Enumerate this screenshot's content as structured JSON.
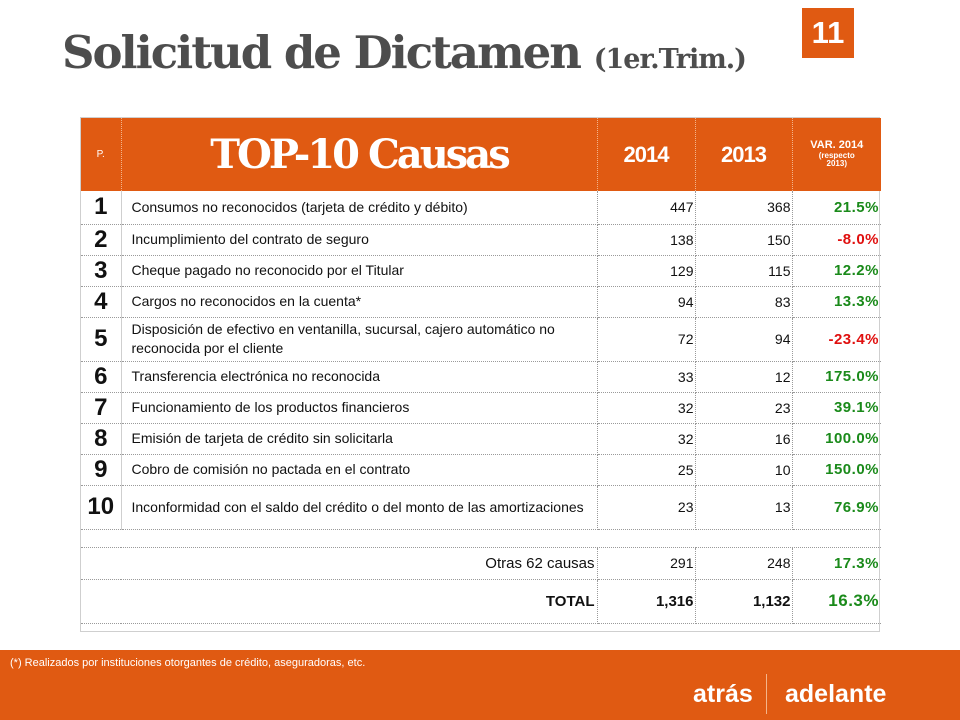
{
  "header": {
    "title": "Solicitud de Dictamen",
    "subtitle": "(1er.Trim.)",
    "page_number": "11"
  },
  "table": {
    "headers": {
      "p": "P.",
      "causes": "TOP-10 Causas",
      "y2014": "2014",
      "y2013": "2013",
      "var_line1": "VAR. 2014",
      "var_line2": "(respecto",
      "var_line3": "2013)"
    },
    "rows": [
      {
        "rank": "1",
        "cause": "Consumos no reconocidos (tarjeta de crédito y débito)",
        "v2014": "447",
        "v2013": "368",
        "var": "21.5%"
      },
      {
        "rank": "2",
        "cause": "Incumplimiento del contrato de seguro",
        "v2014": "138",
        "v2013": "150",
        "var": "-8.0%"
      },
      {
        "rank": "3",
        "cause": "Cheque pagado no reconocido por el Titular",
        "v2014": "129",
        "v2013": "115",
        "var": "12.2%"
      },
      {
        "rank": "4",
        "cause": "Cargos no reconocidos en la cuenta*",
        "v2014": "94",
        "v2013": "83",
        "var": "13.3%"
      },
      {
        "rank": "5",
        "cause": "Disposición de efectivo en ventanilla, sucursal, cajero automático no reconocida por el cliente",
        "v2014": "72",
        "v2013": "94",
        "var": "-23.4%"
      },
      {
        "rank": "6",
        "cause": "Transferencia electrónica no reconocida",
        "v2014": "33",
        "v2013": "12",
        "var": "175.0%"
      },
      {
        "rank": "7",
        "cause": "Funcionamiento de los productos financieros",
        "v2014": "32",
        "v2013": "23",
        "var": "39.1%"
      },
      {
        "rank": "8",
        "cause": "Emisión de tarjeta de crédito sin solicitarla",
        "v2014": "32",
        "v2013": "16",
        "var": "100.0%"
      },
      {
        "rank": "9",
        "cause": "Cobro de comisión no pactada en el contrato",
        "v2014": "25",
        "v2013": "10",
        "var": "150.0%"
      },
      {
        "rank": "10",
        "cause": "Inconformidad con el saldo del crédito o del monto de las amortizaciones",
        "v2014": "23",
        "v2013": "13",
        "var": "76.9%"
      }
    ],
    "others": {
      "label": "Otras 62 causas",
      "v2014": "291",
      "v2013": "248",
      "var": "17.3%"
    },
    "total": {
      "label": "TOTAL",
      "v2014": "1,316",
      "v2013": "1,132",
      "var": "16.3%"
    }
  },
  "footer": {
    "footnote": "(*)  Realizados por  instituciones otorgantes de crédito, aseguradoras, etc.",
    "back_label": "atrás",
    "next_label": "adelante"
  },
  "colors": {
    "accent": "#e05a12",
    "positive": "#1a8a1a",
    "negative": "#e0100f",
    "title": "#4d4d4d"
  }
}
